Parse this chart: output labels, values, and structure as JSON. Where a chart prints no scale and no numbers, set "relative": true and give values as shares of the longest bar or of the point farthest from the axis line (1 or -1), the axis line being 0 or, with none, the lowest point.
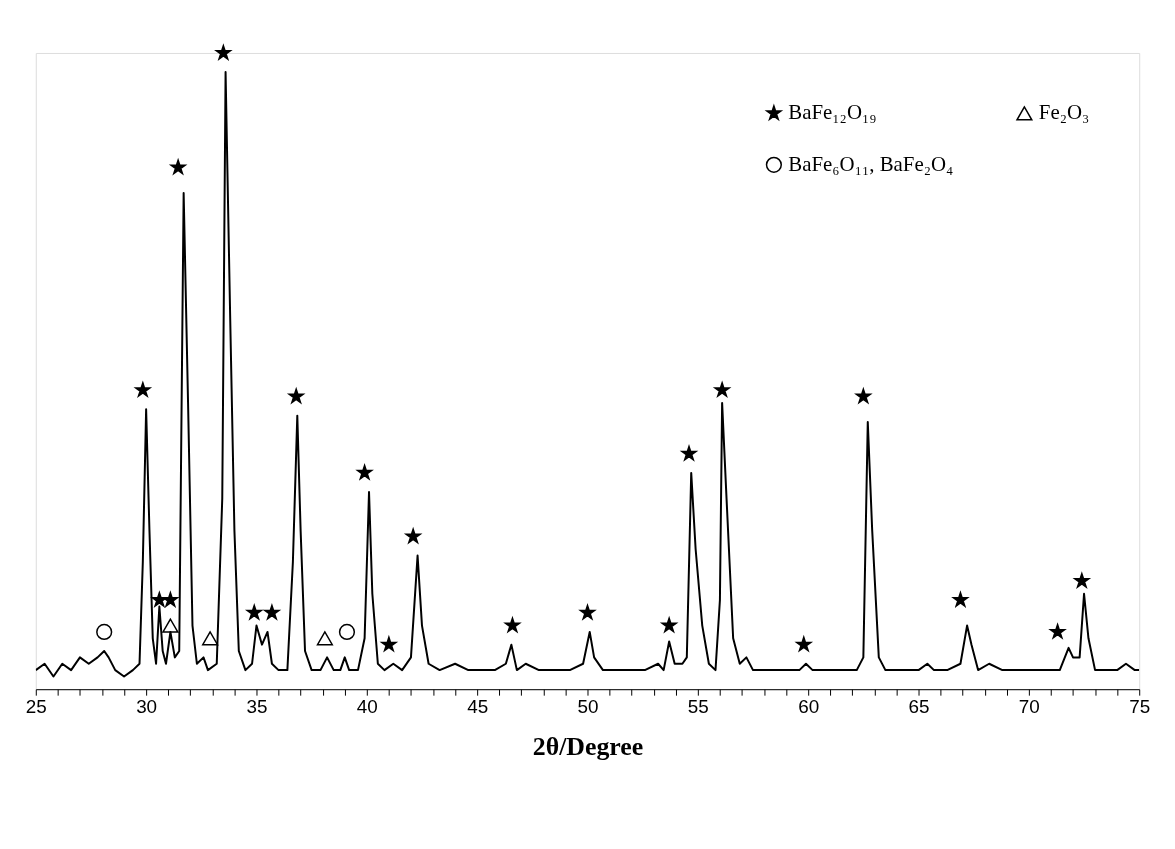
{
  "chart_data": {
    "type": "line",
    "relative": true,
    "xlabel": "2θ/Degree",
    "xlim": [
      25,
      75
    ],
    "xticks": [
      25,
      {
        "value": 26,
        "label": null
      },
      {
        "value": 27,
        "label": null
      },
      {
        "value": 28,
        "label": null
      },
      {
        "value": 29,
        "label": null
      },
      30,
      {
        "value": 31,
        "label": null
      },
      {
        "value": 32,
        "label": null
      },
      {
        "value": 33,
        "label": null
      },
      {
        "value": 34,
        "label": null
      },
      35,
      {
        "value": 36,
        "label": null
      },
      {
        "value": 37,
        "label": null
      },
      {
        "value": 38,
        "label": null
      },
      {
        "value": 39,
        "label": null
      },
      40,
      {
        "value": 41,
        "label": null
      },
      {
        "value": 42,
        "label": null
      },
      {
        "value": 43,
        "label": null
      },
      {
        "value": 44,
        "label": null
      },
      45,
      {
        "value": 46,
        "label": null
      },
      {
        "value": 47,
        "label": null
      },
      {
        "value": 48,
        "label": null
      },
      {
        "value": 49,
        "label": null
      },
      50,
      {
        "value": 51,
        "label": null
      },
      {
        "value": 52,
        "label": null
      },
      {
        "value": 53,
        "label": null
      },
      {
        "value": 54,
        "label": null
      },
      55,
      {
        "value": 56,
        "label": null
      },
      {
        "value": 57,
        "label": null
      },
      {
        "value": 58,
        "label": null
      },
      {
        "value": 59,
        "label": null
      },
      60,
      {
        "value": 61,
        "label": null
      },
      {
        "value": 62,
        "label": null
      },
      {
        "value": 63,
        "label": null
      },
      {
        "value": 64,
        "label": null
      },
      65,
      {
        "value": 66,
        "label": null
      },
      {
        "value": 67,
        "label": null
      },
      {
        "value": 68,
        "label": null
      },
      {
        "value": 69,
        "label": null
      },
      70,
      {
        "value": 71,
        "label": null
      },
      {
        "value": 72,
        "label": null
      },
      {
        "value": 73,
        "label": null
      },
      {
        "value": 74,
        "label": null
      },
      75
    ],
    "legend": "top right",
    "grid": false,
    "series": [
      {
        "color": "#000000",
        "line_style": "solid",
        "marker": "none",
        "x": [
          25.0,
          25.4,
          25.8,
          26.2,
          26.6,
          27.0,
          27.4,
          27.8,
          28.1,
          28.3,
          28.6,
          29.0,
          29.4,
          29.7,
          29.85,
          30.0,
          30.15,
          30.3,
          30.45,
          30.6,
          30.75,
          30.9,
          31.1,
          31.3,
          31.5,
          31.7,
          31.9,
          32.1,
          32.3,
          32.6,
          32.8,
          33.2,
          33.45,
          33.6,
          33.8,
          34.0,
          34.2,
          34.5,
          34.8,
          35.0,
          35.25,
          35.5,
          35.7,
          36.0,
          36.4,
          36.65,
          36.85,
          37.0,
          37.2,
          37.5,
          37.9,
          38.2,
          38.5,
          38.8,
          39.0,
          39.2,
          39.6,
          39.9,
          40.1,
          40.25,
          40.5,
          40.8,
          41.2,
          41.6,
          42.0,
          42.3,
          42.5,
          42.8,
          43.3,
          44.0,
          44.6,
          45.2,
          45.8,
          46.3,
          46.55,
          46.8,
          47.2,
          47.8,
          48.5,
          49.2,
          49.8,
          50.1,
          50.3,
          50.7,
          51.3,
          52.0,
          52.6,
          53.2,
          53.45,
          53.7,
          53.95,
          54.3,
          54.5,
          54.7,
          54.9,
          55.2,
          55.5,
          55.8,
          56.0,
          56.1,
          56.3,
          56.6,
          56.9,
          57.2,
          57.5,
          58.0,
          58.6,
          59.2,
          59.6,
          59.9,
          60.2,
          60.8,
          61.5,
          62.2,
          62.5,
          62.7,
          62.9,
          63.2,
          63.5,
          64.0,
          64.5,
          65.0,
          65.4,
          65.7,
          66.3,
          66.9,
          67.2,
          67.4,
          67.7,
          68.2,
          68.8,
          69.5,
          70.2,
          70.8,
          71.4,
          71.8,
          72.0,
          72.3,
          72.5,
          72.7,
          73.0,
          73.5,
          74.0,
          74.4,
          74.8,
          75.0
        ],
        "values": [
          0.03,
          0.04,
          0.02,
          0.04,
          0.03,
          0.05,
          0.04,
          0.05,
          0.06,
          0.05,
          0.03,
          0.02,
          0.03,
          0.04,
          0.2,
          0.44,
          0.25,
          0.08,
          0.04,
          0.13,
          0.06,
          0.04,
          0.09,
          0.05,
          0.06,
          0.78,
          0.45,
          0.1,
          0.04,
          0.05,
          0.03,
          0.04,
          0.3,
          0.97,
          0.6,
          0.25,
          0.06,
          0.03,
          0.04,
          0.1,
          0.07,
          0.09,
          0.04,
          0.03,
          0.03,
          0.2,
          0.43,
          0.25,
          0.06,
          0.03,
          0.03,
          0.05,
          0.03,
          0.03,
          0.05,
          0.03,
          0.03,
          0.08,
          0.31,
          0.15,
          0.04,
          0.03,
          0.04,
          0.03,
          0.05,
          0.21,
          0.1,
          0.04,
          0.03,
          0.04,
          0.03,
          0.03,
          0.03,
          0.04,
          0.07,
          0.03,
          0.04,
          0.03,
          0.03,
          0.03,
          0.04,
          0.09,
          0.05,
          0.03,
          0.03,
          0.03,
          0.03,
          0.04,
          0.03,
          0.075,
          0.04,
          0.04,
          0.05,
          0.34,
          0.22,
          0.1,
          0.04,
          0.03,
          0.14,
          0.45,
          0.3,
          0.08,
          0.04,
          0.05,
          0.03,
          0.03,
          0.03,
          0.03,
          0.03,
          0.04,
          0.03,
          0.03,
          0.03,
          0.03,
          0.05,
          0.42,
          0.25,
          0.05,
          0.03,
          0.03,
          0.03,
          0.03,
          0.04,
          0.03,
          0.03,
          0.04,
          0.1,
          0.07,
          0.03,
          0.04,
          0.03,
          0.03,
          0.03,
          0.03,
          0.03,
          0.065,
          0.05,
          0.05,
          0.15,
          0.08,
          0.03,
          0.03,
          0.03,
          0.04,
          0.03,
          0.03
        ]
      },
      {
        "type": "scatter",
        "name": "BaFe₁₂O₁₉",
        "marker": "star",
        "color": "#000000",
        "x": [
          29.85,
          30.6,
          31.1,
          31.45,
          33.5,
          34.9,
          35.7,
          36.8,
          39.9,
          41.0,
          42.1,
          46.6,
          50.0,
          53.7,
          54.6,
          56.1,
          59.8,
          62.5,
          66.9,
          71.3,
          72.4
        ],
        "values": [
          0.47,
          0.14,
          0.14,
          0.82,
          1.0,
          0.12,
          0.12,
          0.46,
          0.34,
          0.07,
          0.24,
          0.1,
          0.12,
          0.1,
          0.37,
          0.47,
          0.07,
          0.46,
          0.14,
          0.09,
          0.17
        ]
      },
      {
        "type": "scatter",
        "name": "Fe₂O₃",
        "marker": "triangle",
        "color": "#000000",
        "x": [
          31.1,
          32.9,
          38.1
        ],
        "values": [
          0.1,
          0.08,
          0.08
        ]
      },
      {
        "type": "scatter",
        "name": "BaFe₆O₁₁, BaFe₂O₄",
        "marker": "circle",
        "color": "#000000",
        "x": [
          28.1,
          39.1
        ],
        "values": [
          0.09,
          0.09
        ]
      }
    ]
  }
}
